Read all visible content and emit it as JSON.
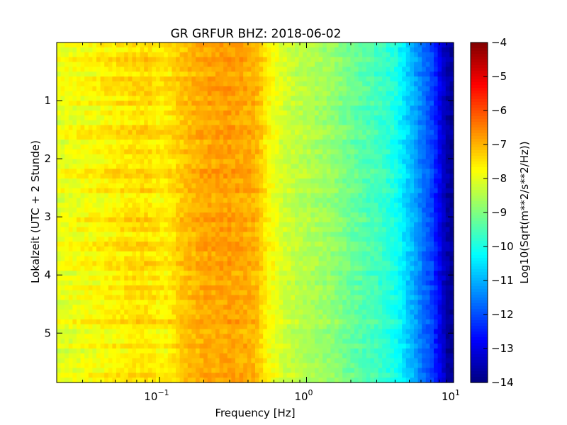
{
  "chart_data": {
    "type": "heatmap",
    "title": "GR GRFUR BHZ: 2018-06-02",
    "xlabel": "Frequency [Hz]",
    "ylabel": "Lokalzeit (UTC + 2 Stunde)",
    "x_scale": "log",
    "xlim": [
      0.02,
      10
    ],
    "x_ticks": [
      0.1,
      1,
      10
    ],
    "x_tick_labels": [
      {
        "base": "10",
        "exp": "−1"
      },
      {
        "base": "10",
        "exp": "0"
      },
      {
        "base": "10",
        "exp": "1"
      }
    ],
    "ylim": [
      0,
      5.85
    ],
    "y_inverted": true,
    "y_ticks": [
      1,
      2,
      3,
      4,
      5
    ],
    "y_tick_labels": [
      "1",
      "2",
      "3",
      "4",
      "5"
    ],
    "colorbar": {
      "label": "Log10(Sqrt(m**2/s**2/Hz))",
      "range": [
        -14,
        -4
      ],
      "ticks": [
        -4,
        -5,
        -6,
        -7,
        -8,
        -9,
        -10,
        -11,
        -12,
        -13,
        -14
      ],
      "tick_labels": [
        "−4",
        "−5",
        "−6",
        "−7",
        "−8",
        "−9",
        "−10",
        "−11",
        "−12",
        "−13",
        "−14"
      ],
      "colormap": "jet"
    },
    "spectrum_profile": {
      "frequency_hz": [
        0.02,
        0.04,
        0.06,
        0.08,
        0.1,
        0.12,
        0.14,
        0.2,
        0.3,
        0.45,
        0.55,
        0.7,
        1.0,
        1.5,
        2.0,
        3.0,
        4.0,
        5.0,
        6.0,
        7.0,
        8.0,
        9.0,
        10.0
      ],
      "level": [
        -8.0,
        -7.7,
        -7.5,
        -7.4,
        -7.6,
        -7.5,
        -7.2,
        -6.9,
        -6.8,
        -7.0,
        -7.7,
        -8.2,
        -8.5,
        -8.8,
        -9.2,
        -9.6,
        -10.0,
        -10.8,
        -11.5,
        -12.0,
        -12.8,
        -13.6,
        -13.8
      ]
    }
  }
}
